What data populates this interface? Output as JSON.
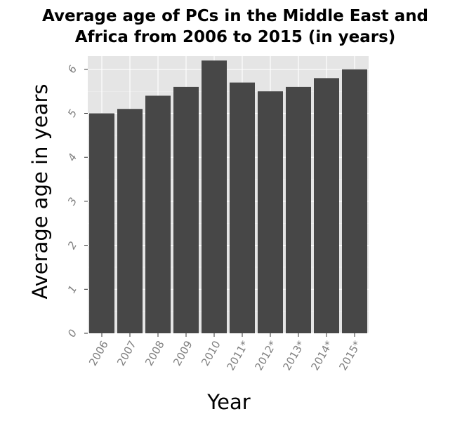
{
  "chart_data": {
    "type": "bar",
    "title_line1": "Average age of PCs in the Middle East and",
    "title_line2": "Africa from 2006 to 2015 (in years)",
    "xlabel": "Year",
    "ylabel": "Average age in years",
    "categories": [
      "2006",
      "2007",
      "2008",
      "2009",
      "2010",
      "2011*",
      "2012*",
      "2013*",
      "2014*",
      "2015*"
    ],
    "values": [
      5.0,
      5.1,
      5.4,
      5.6,
      6.2,
      5.7,
      5.5,
      5.6,
      5.8,
      6.0
    ],
    "yticks": [
      "0",
      "1",
      "2",
      "3",
      "4",
      "5",
      "6"
    ],
    "ylim": [
      0,
      6.3
    ],
    "grid": true,
    "colors": {
      "bar": "#474747",
      "panel": "#e5e5e5",
      "grid": "#ffffff"
    }
  }
}
